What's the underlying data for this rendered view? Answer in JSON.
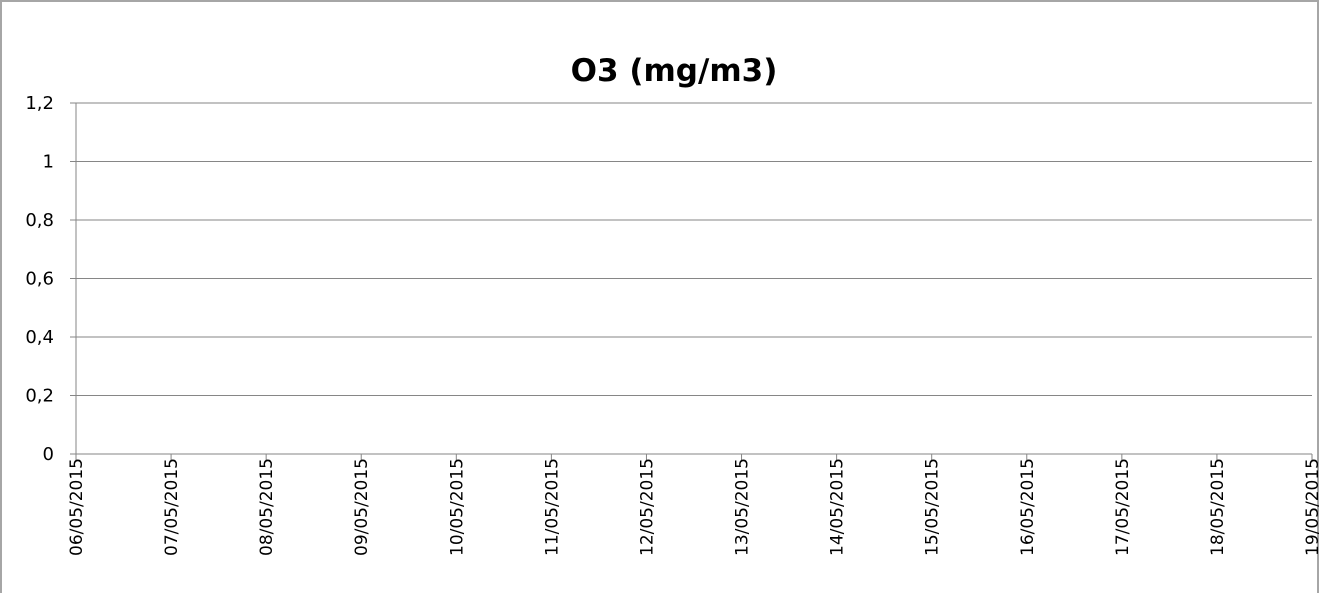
{
  "chart_data": {
    "type": "line",
    "title": "O3  (mg/m3)",
    "xlabel": "",
    "ylabel": "",
    "categories": [
      "06/05/2015",
      "07/05/2015",
      "08/05/2015",
      "09/05/2015",
      "10/05/2015",
      "11/05/2015",
      "12/05/2015",
      "13/05/2015",
      "14/05/2015",
      "15/05/2015",
      "16/05/2015",
      "17/05/2015",
      "18/05/2015",
      "19/05/2015"
    ],
    "series": [],
    "ylim": [
      0,
      1.2
    ],
    "yticks": [
      {
        "value": 0,
        "label": "0"
      },
      {
        "value": 0.2,
        "label": "0,2"
      },
      {
        "value": 0.4,
        "label": "0,4"
      },
      {
        "value": 0.6,
        "label": "0,6"
      },
      {
        "value": 0.8,
        "label": "0,8"
      },
      {
        "value": 1,
        "label": "1"
      },
      {
        "value": 1.2,
        "label": "1,2"
      }
    ],
    "grid": true,
    "legend": "none"
  }
}
